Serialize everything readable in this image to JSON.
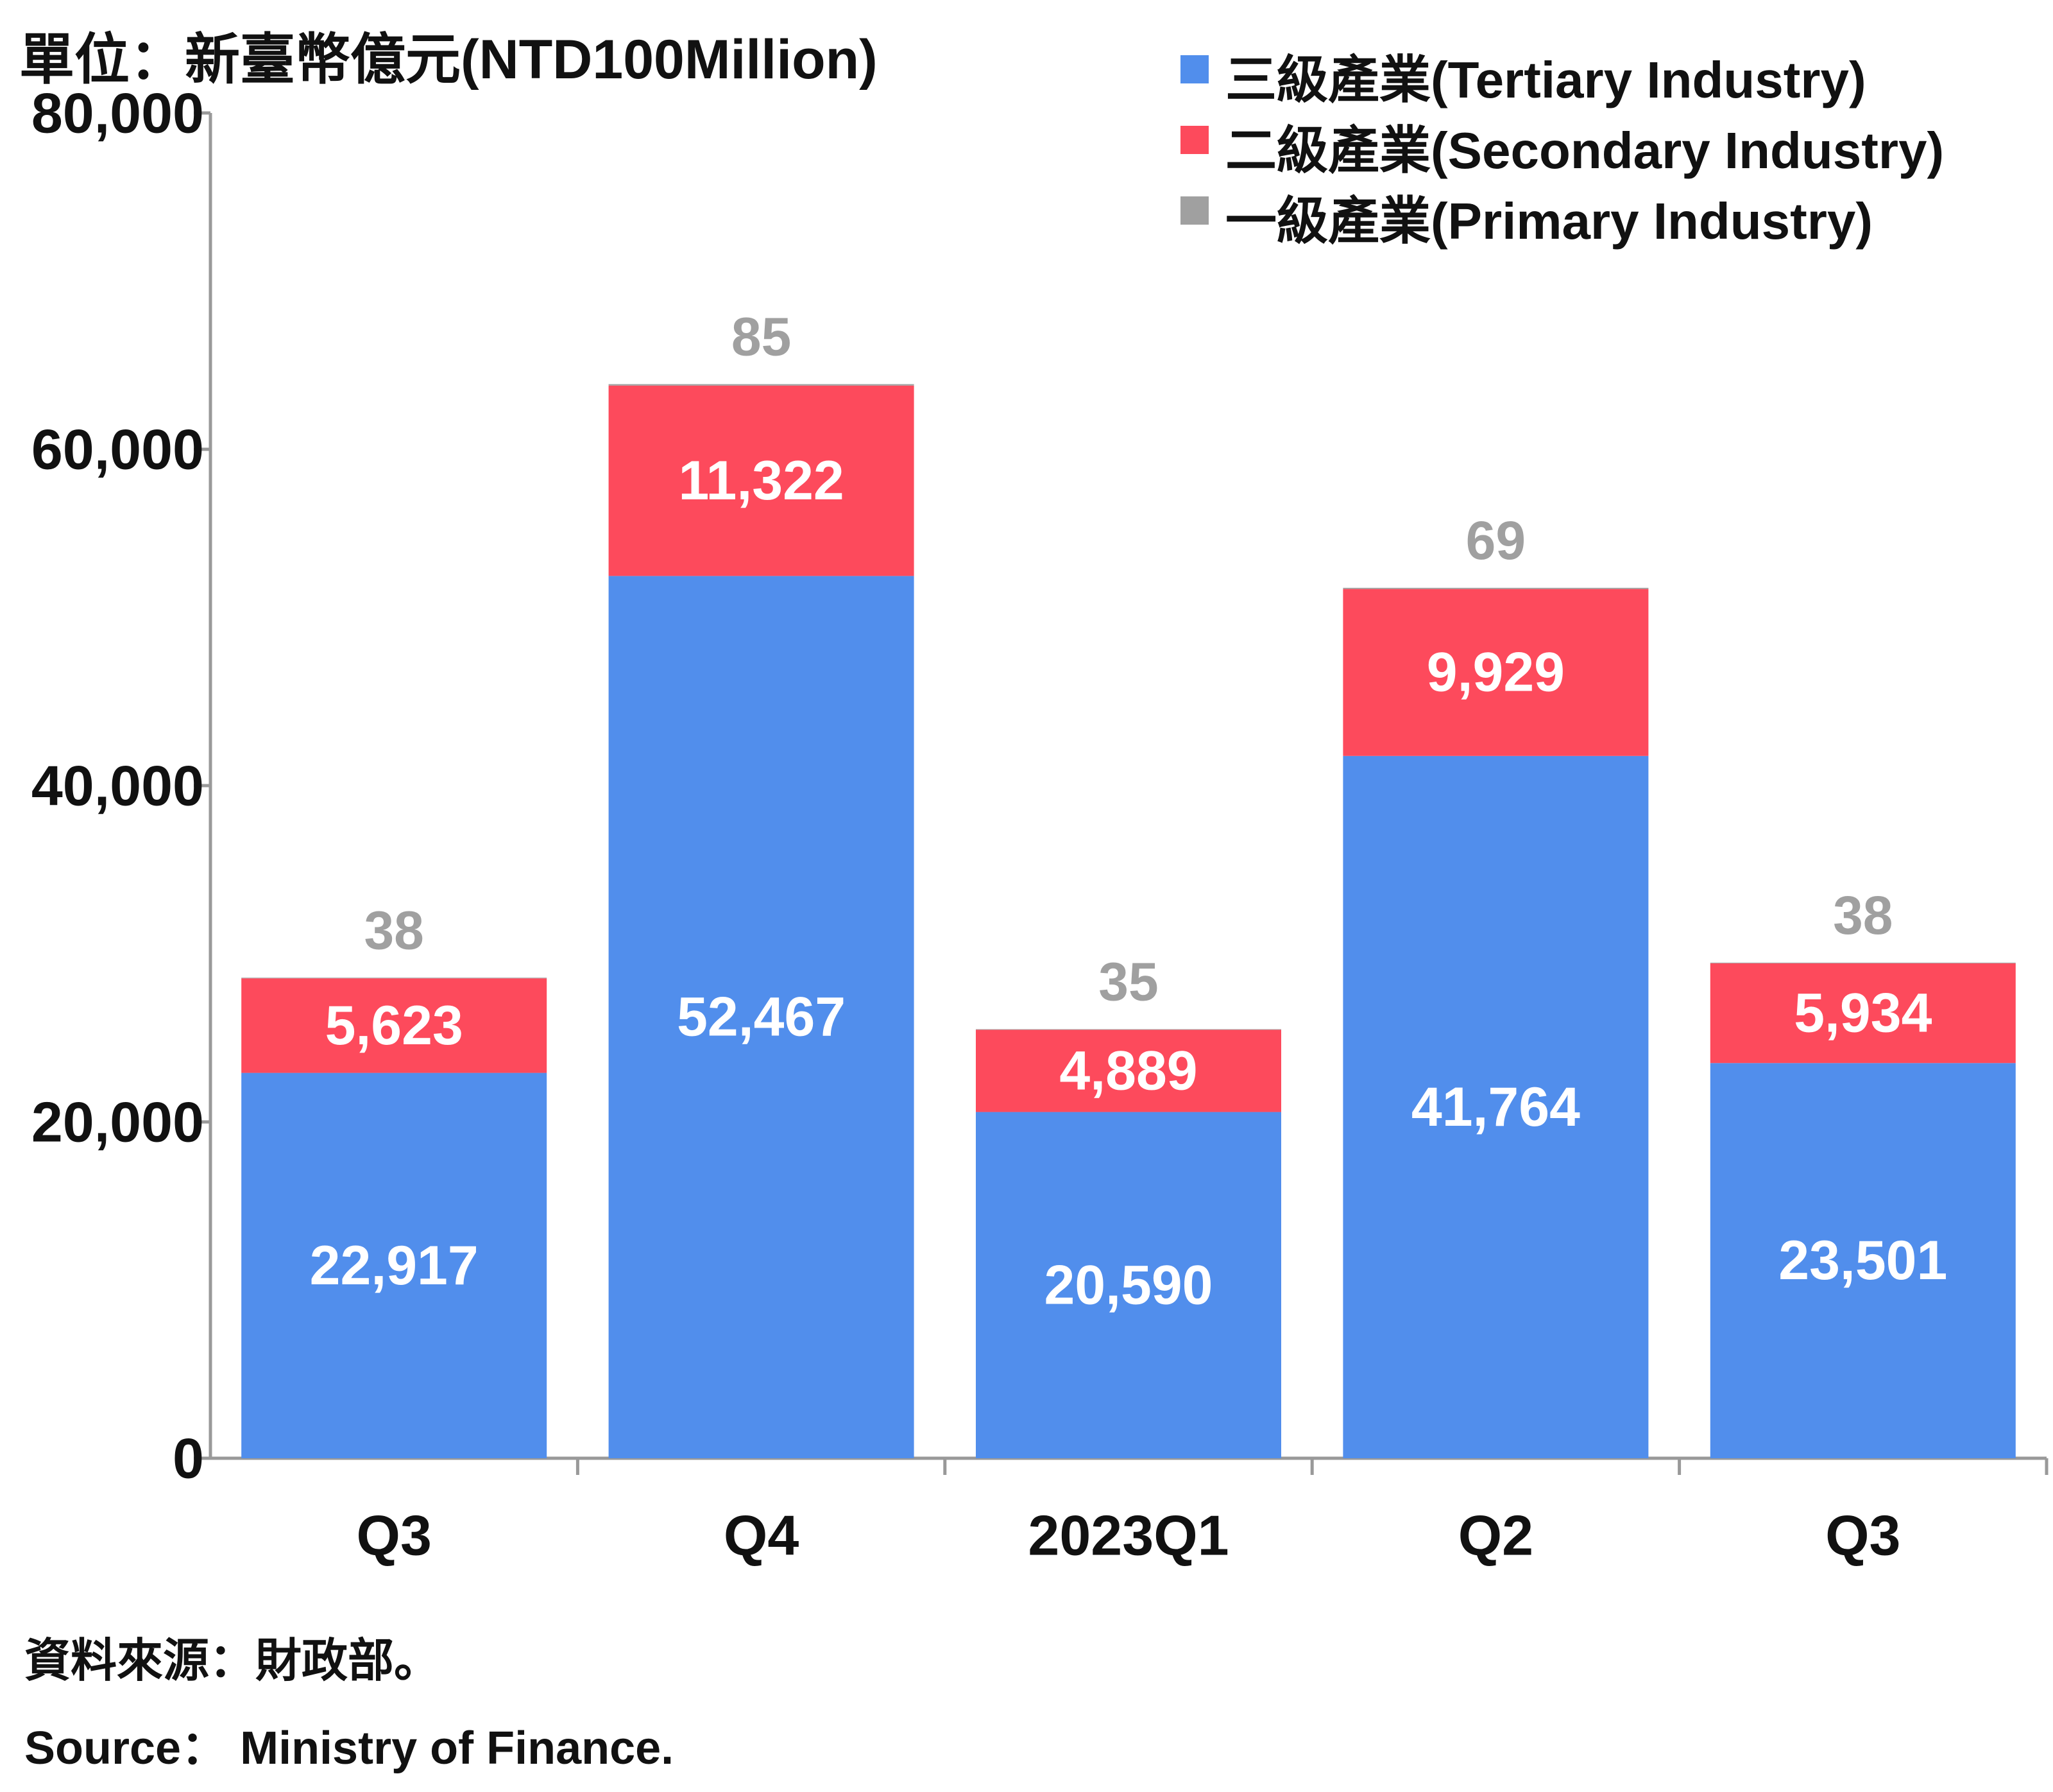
{
  "unit_label": "單位：新臺幣億元(NTD100Million)",
  "source": {
    "line1": "資料來源：財政部。",
    "line2": "Source： Ministry of Finance."
  },
  "colors": {
    "tertiary": "#518EEC",
    "secondary": "#FD4A5C",
    "primary": "#A0A0A0",
    "axis": "#999999"
  },
  "chart_data": {
    "type": "bar",
    "stacked": true,
    "categories": [
      "Q3",
      "Q4",
      "2023Q1",
      "Q2",
      "Q3"
    ],
    "series": [
      {
        "name": "三級產業(Tertiary Industry)",
        "values": [
          22917,
          52467,
          20590,
          41764,
          23501
        ],
        "labels": [
          "22,917",
          "52,467",
          "20,590",
          "41,764",
          "23,501"
        ],
        "color": "#518EEC"
      },
      {
        "name": "二級產業(Secondary Industry)",
        "values": [
          5623,
          11322,
          4889,
          9929,
          5934
        ],
        "labels": [
          "5,623",
          "11,322",
          "4,889",
          "9,929",
          "5,934"
        ],
        "color": "#FD4A5C"
      },
      {
        "name": "一級產業(Primary Industry)",
        "values": [
          38,
          85,
          35,
          69,
          38
        ],
        "labels": [
          "38",
          "85",
          "35",
          "69",
          "38"
        ],
        "color": "#A0A0A0"
      }
    ],
    "ylim": [
      0,
      80000
    ],
    "yticks": [
      0,
      20000,
      40000,
      60000,
      80000
    ],
    "ytick_labels": [
      "0",
      "20,000",
      "40,000",
      "60,000",
      "80,000"
    ],
    "legend_position": "top-right",
    "grid": false
  }
}
